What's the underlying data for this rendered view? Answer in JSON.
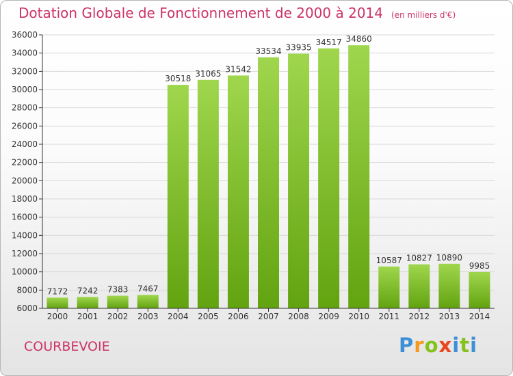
{
  "header": {
    "title": "Dotation Globale de Fonctionnement de 2000 à 2014",
    "unit": "(en milliers d'€)"
  },
  "city": "COURBEVOIE",
  "brand": "Proxiti",
  "colors": {
    "title": "#cc3366",
    "bar_light": "#9fd64d",
    "bar_dark": "#62a310",
    "axis": "#333333",
    "grid": "#d8d8d8"
  },
  "chart_data": {
    "type": "bar",
    "title": "Dotation Globale de Fonctionnement de 2000 à 2014",
    "subtitle": "(en milliers d'€)",
    "xlabel": "",
    "ylabel": "",
    "categories": [
      "2000",
      "2001",
      "2002",
      "2003",
      "2004",
      "2005",
      "2006",
      "2007",
      "2008",
      "2009",
      "2010",
      "2011",
      "2012",
      "2013",
      "2014"
    ],
    "values": [
      7172,
      7242,
      7383,
      7467,
      30518,
      31065,
      31542,
      33534,
      33935,
      34517,
      34860,
      10587,
      10827,
      10890,
      9985
    ],
    "ylim": [
      6000,
      36000
    ],
    "yticks": [
      6000,
      8000,
      10000,
      12000,
      14000,
      16000,
      18000,
      20000,
      22000,
      24000,
      26000,
      28000,
      30000,
      32000,
      34000,
      36000
    ],
    "grid": true,
    "data_labels": true,
    "legend": "none"
  }
}
